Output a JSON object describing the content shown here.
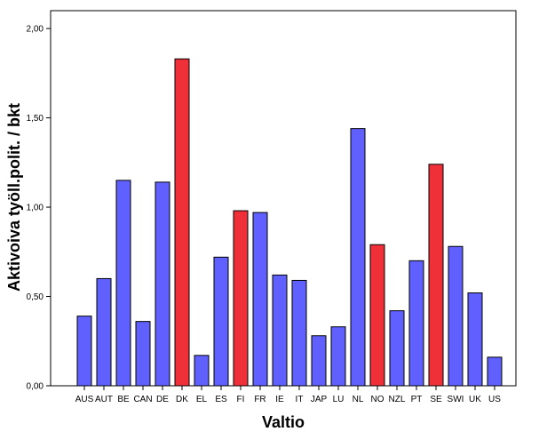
{
  "chart_data": {
    "type": "bar",
    "xlabel": "Valtio",
    "ylabel": "Aktivoiva työll.polit. / bkt",
    "ylim": [
      0,
      2.1
    ],
    "yticks": [
      0,
      0.5,
      1.0,
      1.5,
      2.0
    ],
    "ytick_labels": [
      "0,00",
      "0,50",
      "1,00",
      "1,50",
      "2,00"
    ],
    "grid": false,
    "categories": [
      "AUS",
      "AUT",
      "BE",
      "CAN",
      "DE",
      "DK",
      "EL",
      "ES",
      "FI",
      "FR",
      "IE",
      "IT",
      "JAP",
      "LU",
      "NL",
      "NO",
      "NZL",
      "PT",
      "SE",
      "SWI",
      "UK",
      "US"
    ],
    "values": [
      0.39,
      0.6,
      1.15,
      0.36,
      1.14,
      1.83,
      0.17,
      0.72,
      0.98,
      0.97,
      0.62,
      0.59,
      0.28,
      0.33,
      1.44,
      0.79,
      0.42,
      0.7,
      1.24,
      0.78,
      0.52,
      0.16
    ],
    "highlighted": [
      "DK",
      "FI",
      "NO",
      "SE"
    ],
    "colors": {
      "default": "#6060ff",
      "highlight": "#f03038",
      "outline": "#000000"
    }
  }
}
